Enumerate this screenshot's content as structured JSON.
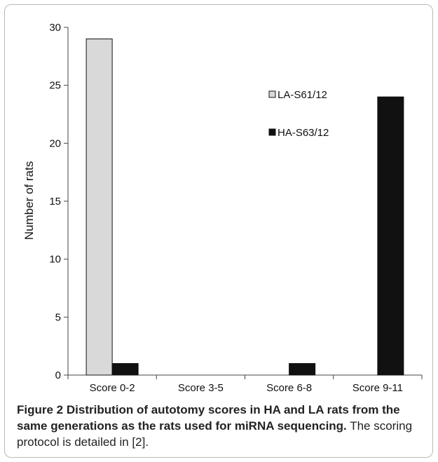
{
  "chart_data": {
    "type": "bar",
    "categories": [
      "Score 0-2",
      "Score 3-5",
      "Score 6-8",
      "Score 9-11"
    ],
    "series": [
      {
        "name": "LA-S61/12",
        "values": [
          29,
          0,
          0,
          0
        ],
        "color": "#d9d9d9"
      },
      {
        "name": "HA-S63/12",
        "values": [
          1,
          0,
          1,
          24
        ],
        "color": "#111111"
      }
    ],
    "ylabel": "Number of rats",
    "xlabel": "",
    "ylim": [
      0,
      30
    ],
    "yticks": [
      0,
      5,
      10,
      15,
      20,
      25,
      30
    ],
    "grid": false,
    "legend_position": "top-right"
  },
  "caption": {
    "label": "Figure 2",
    "title": "Distribution of autotomy scores in HA and LA rats from the same generations as the rats used for miRNA sequencing.",
    "text": "The scoring protocol is detailed in [2]."
  }
}
